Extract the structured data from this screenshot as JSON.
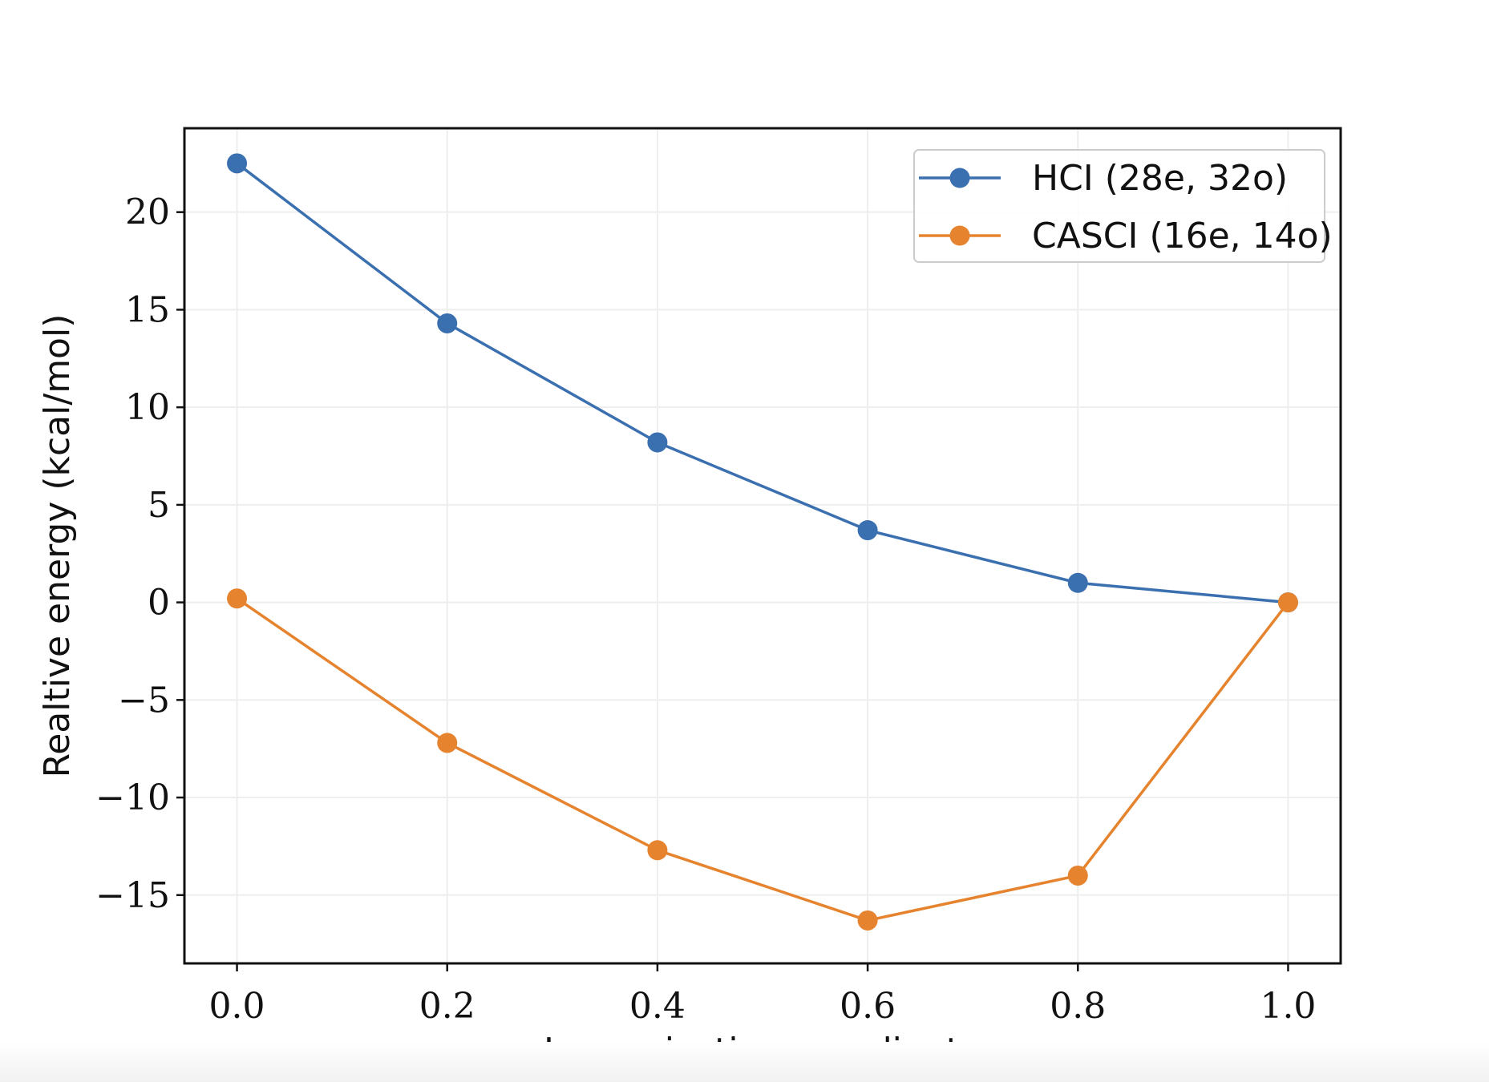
{
  "chart_data": {
    "type": "line",
    "title": "",
    "xlabel": "Isomerization coordinate",
    "ylabel": "Realtive energy (kcal/mol)",
    "x": [
      0.0,
      0.2,
      0.4,
      0.6,
      0.8,
      1.0
    ],
    "xlim": [
      -0.05,
      1.05
    ],
    "ylim": [
      -18.5,
      24.3
    ],
    "xticks": [
      0.0,
      0.2,
      0.4,
      0.6,
      0.8,
      1.0
    ],
    "xtick_labels": [
      "0.0",
      "0.2",
      "0.4",
      "0.6",
      "0.8",
      "1.0"
    ],
    "yticks": [
      20,
      15,
      10,
      5,
      0,
      -5,
      -10,
      -15
    ],
    "ytick_labels": [
      "20",
      "15",
      "10",
      "5",
      "0",
      "−5",
      "−10",
      "−15"
    ],
    "grid": true,
    "legend_position": "top-right",
    "series": [
      {
        "name": "HCI (28e, 32o)",
        "color": "#3a6fb0",
        "values": [
          22.5,
          14.3,
          8.2,
          3.7,
          1.0,
          0.0
        ]
      },
      {
        "name": "CASCI (16e, 14o)",
        "color": "#e6832e",
        "values": [
          0.2,
          -7.2,
          -12.7,
          -16.3,
          -14.0,
          0.0
        ]
      }
    ]
  }
}
